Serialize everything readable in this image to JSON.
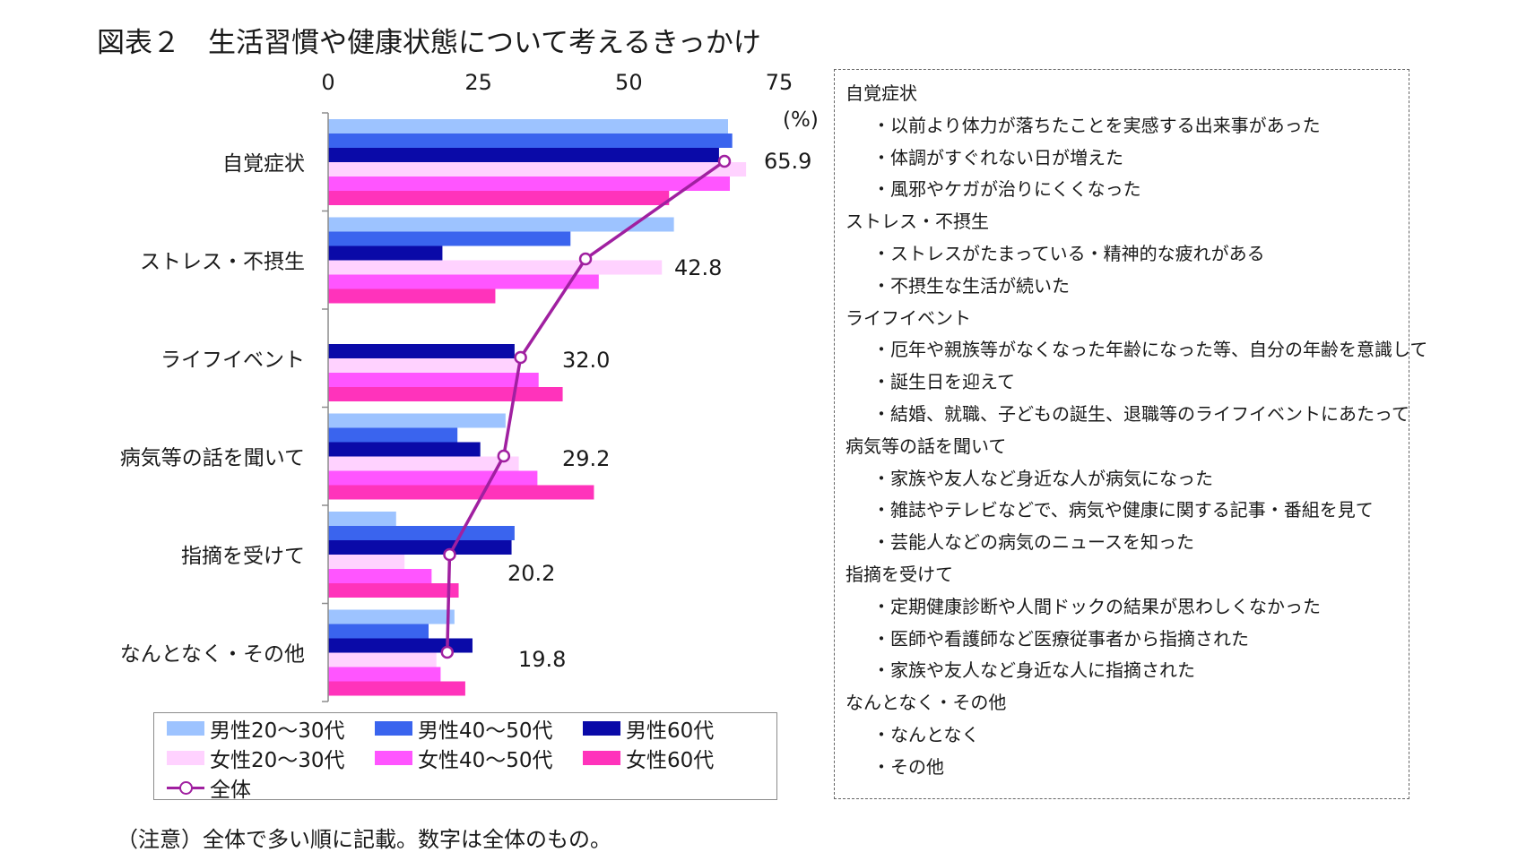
{
  "title": "図表２　生活習慣や健康状態について考えるきっかけ",
  "unit_label": "(%)",
  "note": "（注意）全体で多い順に記載。数字は全体のもの。",
  "colors": {
    "male_20_30": "#9dc3ff",
    "male_40_50": "#3a64ee",
    "male_60": "#0a0aa8",
    "female_20_30": "#ffd2ff",
    "female_40_50": "#ff55ff",
    "female_60": "#ff33bb",
    "total": "#a020a0"
  },
  "chart_data": {
    "type": "bar",
    "orientation": "horizontal",
    "title": "図表２　生活習慣や健康状態について考えるきっかけ",
    "xlabel": "(%)",
    "ylabel": "",
    "xlim": [
      0,
      75
    ],
    "x_ticks": [
      0,
      25,
      50,
      75
    ],
    "tick_labels": [
      "0",
      "25",
      "50",
      "75"
    ],
    "grid": false,
    "legend_position": "bottom",
    "categories": [
      "自覚症状",
      "ストレス・不摂生",
      "ライフイベント",
      "病気等の話を聞いて",
      "指摘を受けて",
      "なんとなく・その他"
    ],
    "series": [
      {
        "name": "男性20～30代",
        "values": [
          66.5,
          57.5,
          0,
          29.5,
          11.3,
          21.0
        ]
      },
      {
        "name": "男性40～50代",
        "values": [
          67.2,
          40.3,
          0,
          21.5,
          31.0,
          16.7
        ]
      },
      {
        "name": "男性60代",
        "values": [
          65.0,
          19.0,
          31.0,
          25.3,
          30.5,
          24.0
        ]
      },
      {
        "name": "女性20～30代",
        "values": [
          69.5,
          55.5,
          31.5,
          31.7,
          12.7,
          18.0
        ]
      },
      {
        "name": "女性40～50代",
        "values": [
          66.8,
          45.0,
          35.0,
          34.8,
          17.2,
          18.7
        ]
      },
      {
        "name": "女性60代",
        "values": [
          56.7,
          27.8,
          39.0,
          44.2,
          21.7,
          22.8
        ]
      }
    ],
    "line_series": {
      "name": "全体",
      "values": [
        65.9,
        42.8,
        32.0,
        29.2,
        20.2,
        19.8
      ]
    },
    "data_labels": [
      "65.9",
      "42.8",
      "32.0",
      "29.2",
      "20.2",
      "19.8"
    ]
  },
  "legend": [
    {
      "name": "男性20～30代",
      "type": "bar"
    },
    {
      "name": "男性40～50代",
      "type": "bar"
    },
    {
      "name": "男性60代",
      "type": "bar"
    },
    {
      "name": "女性20～30代",
      "type": "bar"
    },
    {
      "name": "女性40～50代",
      "type": "bar"
    },
    {
      "name": "女性60代",
      "type": "bar"
    },
    {
      "name": "全体",
      "type": "line"
    }
  ],
  "side_panel": [
    {
      "text": "自覚症状",
      "sub": false
    },
    {
      "text": "・以前より体力が落ちたことを実感する出来事があった",
      "sub": true
    },
    {
      "text": "・体調がすぐれない日が増えた",
      "sub": true
    },
    {
      "text": "・風邪やケガが治りにくくなった",
      "sub": true
    },
    {
      "text": "ストレス・不摂生",
      "sub": false
    },
    {
      "text": "・ストレスがたまっている・精神的な疲れがある",
      "sub": true
    },
    {
      "text": "・不摂生な生活が続いた",
      "sub": true
    },
    {
      "text": "ライフイベント",
      "sub": false
    },
    {
      "text": "・厄年や親族等がなくなった年齢になった等、自分の年齢を意識して",
      "sub": true
    },
    {
      "text": "・誕生日を迎えて",
      "sub": true
    },
    {
      "text": "・結婚、就職、子どもの誕生、退職等のライフイベントにあたって",
      "sub": true
    },
    {
      "text": "病気等の話を聞いて",
      "sub": false
    },
    {
      "text": "・家族や友人など身近な人が病気になった",
      "sub": true
    },
    {
      "text": "・雑誌やテレビなどで、病気や健康に関する記事・番組を見て",
      "sub": true
    },
    {
      "text": "・芸能人などの病気のニュースを知った",
      "sub": true
    },
    {
      "text": "指摘を受けて",
      "sub": false
    },
    {
      "text": "・定期健康診断や人間ドックの結果が思わしくなかった",
      "sub": true
    },
    {
      "text": "・医師や看護師など医療従事者から指摘された",
      "sub": true
    },
    {
      "text": "・家族や友人など身近な人に指摘された",
      "sub": true
    },
    {
      "text": "なんとなく・その他",
      "sub": false
    },
    {
      "text": "・なんとなく",
      "sub": true
    },
    {
      "text": "・その他",
      "sub": true
    }
  ]
}
